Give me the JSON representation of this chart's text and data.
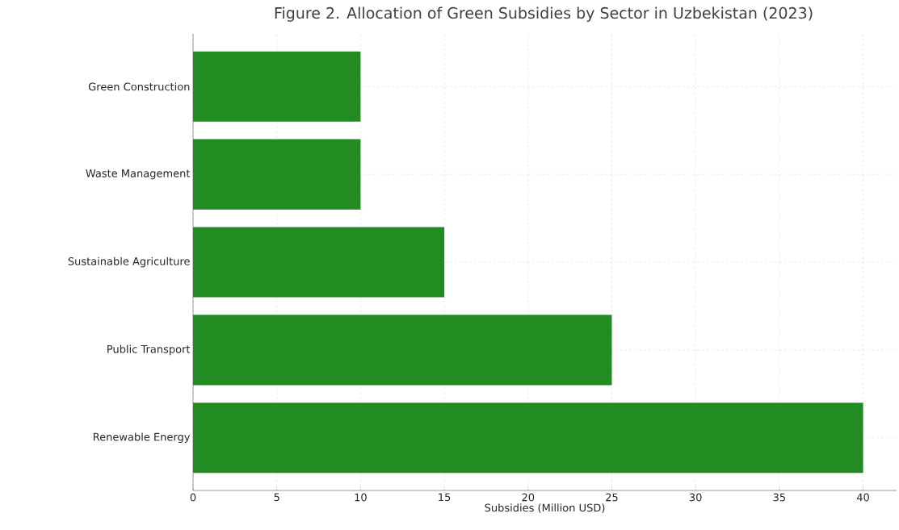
{
  "chart_data": {
    "type": "bar",
    "orientation": "horizontal",
    "title": "Figure 2. Allocation of Green Subsidies by Sector in Uzbekistan (2023)",
    "xlabel": "Subsidies (Million USD)",
    "categories": [
      "Green Construction",
      "Waste Management",
      "Sustainable Agriculture",
      "Public Transport",
      "Renewable Energy"
    ],
    "values": [
      10,
      10,
      15,
      25,
      40
    ],
    "color": "#228b22",
    "xlim": [
      0,
      42
    ],
    "xticks": [
      0,
      5,
      10,
      15,
      20,
      25,
      30,
      35,
      40
    ],
    "grid": true
  }
}
